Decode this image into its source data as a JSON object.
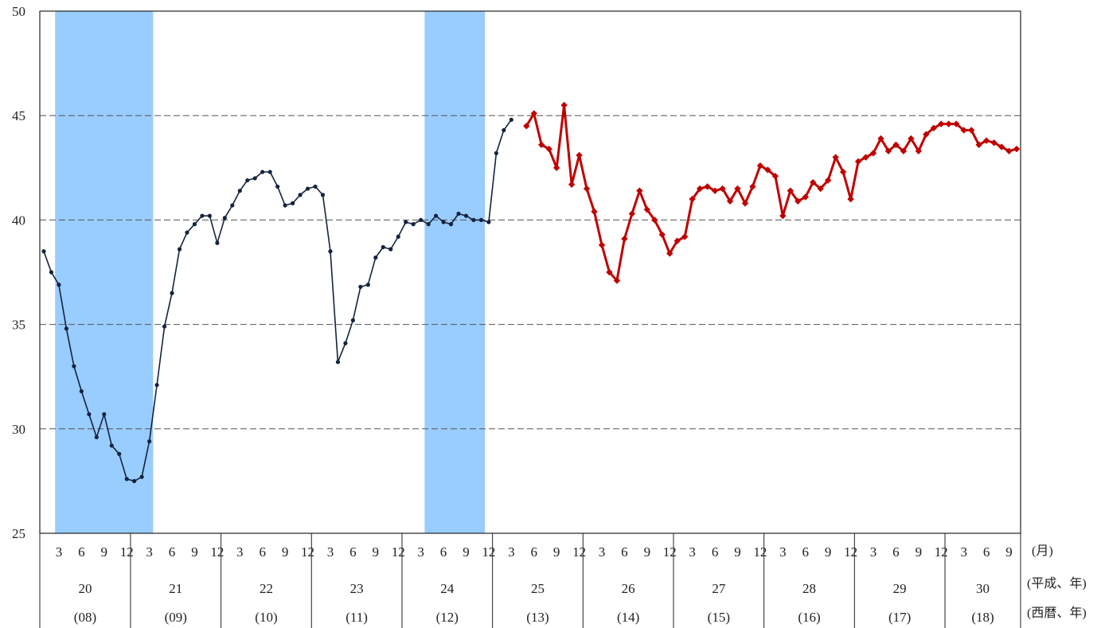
{
  "chart_data": {
    "type": "line",
    "title": "",
    "xlabel": "",
    "ylabel": "",
    "ylim": [
      25,
      50
    ],
    "yticks": [
      25,
      30,
      35,
      40,
      45,
      50
    ],
    "grid": {
      "horizontal": true,
      "style": "dashed"
    },
    "x_index_range": [
      0,
      129
    ],
    "month_labels": [
      {
        "i": 2,
        "label": "3"
      },
      {
        "i": 5,
        "label": "6"
      },
      {
        "i": 8,
        "label": "9"
      },
      {
        "i": 11,
        "label": "12"
      },
      {
        "i": 14,
        "label": "3"
      },
      {
        "i": 17,
        "label": "6"
      },
      {
        "i": 20,
        "label": "9"
      },
      {
        "i": 23,
        "label": "12"
      },
      {
        "i": 26,
        "label": "3"
      },
      {
        "i": 29,
        "label": "6"
      },
      {
        "i": 32,
        "label": "9"
      },
      {
        "i": 35,
        "label": "12"
      },
      {
        "i": 38,
        "label": "3"
      },
      {
        "i": 41,
        "label": "6"
      },
      {
        "i": 44,
        "label": "9"
      },
      {
        "i": 47,
        "label": "12"
      },
      {
        "i": 50,
        "label": "3"
      },
      {
        "i": 53,
        "label": "6"
      },
      {
        "i": 56,
        "label": "9"
      },
      {
        "i": 59,
        "label": "12"
      },
      {
        "i": 62,
        "label": "3"
      },
      {
        "i": 65,
        "label": "6"
      },
      {
        "i": 68,
        "label": "9"
      },
      {
        "i": 71,
        "label": "12"
      },
      {
        "i": 74,
        "label": "3"
      },
      {
        "i": 77,
        "label": "6"
      },
      {
        "i": 80,
        "label": "9"
      },
      {
        "i": 83,
        "label": "12"
      },
      {
        "i": 86,
        "label": "3"
      },
      {
        "i": 89,
        "label": "6"
      },
      {
        "i": 92,
        "label": "9"
      },
      {
        "i": 95,
        "label": "12"
      },
      {
        "i": 98,
        "label": "3"
      },
      {
        "i": 101,
        "label": "6"
      },
      {
        "i": 104,
        "label": "9"
      },
      {
        "i": 107,
        "label": "12"
      },
      {
        "i": 110,
        "label": "3"
      },
      {
        "i": 113,
        "label": "6"
      },
      {
        "i": 116,
        "label": "9"
      },
      {
        "i": 119,
        "label": "12"
      },
      {
        "i": 122,
        "label": "3"
      },
      {
        "i": 125,
        "label": "6"
      },
      {
        "i": 128,
        "label": "9"
      }
    ],
    "month_unit_label": "(月)",
    "years": [
      {
        "heisei": "20",
        "western": "(08)",
        "from": 0,
        "to": 12
      },
      {
        "heisei": "21",
        "western": "(09)",
        "from": 12,
        "to": 24
      },
      {
        "heisei": "22",
        "western": "(10)",
        "from": 24,
        "to": 36
      },
      {
        "heisei": "23",
        "western": "(11)",
        "from": 36,
        "to": 48
      },
      {
        "heisei": "24",
        "western": "(12)",
        "from": 48,
        "to": 60
      },
      {
        "heisei": "25",
        "western": "(13)",
        "from": 60,
        "to": 72
      },
      {
        "heisei": "26",
        "western": "(14)",
        "from": 72,
        "to": 84
      },
      {
        "heisei": "27",
        "western": "(15)",
        "from": 84,
        "to": 96
      },
      {
        "heisei": "28",
        "western": "(16)",
        "from": 96,
        "to": 108
      },
      {
        "heisei": "29",
        "western": "(17)",
        "from": 108,
        "to": 120
      },
      {
        "heisei": "30",
        "western": "(18)",
        "from": 120,
        "to": 129
      }
    ],
    "year_row_label": "(平成、年)",
    "western_row_label": "(西暦、年)",
    "shaded_periods": [
      {
        "from": 1.5,
        "to": 14.5,
        "color": "#99ccff"
      },
      {
        "from": 50.5,
        "to": 58.5,
        "color": "#99ccff"
      }
    ],
    "series": [
      {
        "color": "#14233d",
        "marker": "circle",
        "x_start": 0,
        "values": [
          38.5,
          37.5,
          36.9,
          34.8,
          33.0,
          31.8,
          30.7,
          29.6,
          30.7,
          29.2,
          28.8,
          27.6,
          27.5,
          27.7,
          29.4,
          32.1,
          34.9,
          36.5,
          38.6,
          39.4,
          39.8,
          40.2,
          40.2,
          38.9,
          40.1,
          40.7,
          41.4,
          41.9,
          42.0,
          42.3,
          42.3,
          41.6,
          40.7,
          40.8,
          41.2,
          41.5,
          41.6,
          41.2,
          38.5,
          33.2,
          34.1,
          35.2,
          36.8,
          36.9,
          38.2,
          38.7,
          38.6,
          39.2,
          39.9,
          39.8,
          40.0,
          39.8,
          40.2,
          39.9,
          39.8,
          40.3,
          40.2,
          40.0,
          40.0,
          39.9,
          43.2,
          44.3,
          44.8
        ]
      },
      {
        "color": "#c00000",
        "marker": "diamond",
        "x_start": 64,
        "values": [
          44.5,
          45.1,
          43.6,
          43.4,
          42.5,
          45.5,
          41.7,
          43.1,
          41.5,
          40.4,
          38.8,
          37.5,
          37.1,
          39.1,
          40.3,
          41.4,
          40.5,
          40.0,
          39.3,
          38.4,
          39.0,
          39.2,
          41.0,
          41.5,
          41.6,
          41.4,
          41.5,
          40.9,
          41.5,
          40.8,
          41.6,
          42.6,
          42.4,
          42.1,
          40.2,
          41.4,
          40.9,
          41.1,
          41.8,
          41.5,
          41.9,
          43.0,
          42.3,
          41.0,
          42.8,
          43.0,
          43.2,
          43.9,
          43.3,
          43.6,
          43.3,
          43.9,
          43.3,
          44.1,
          44.4,
          44.6,
          44.6,
          44.6,
          44.3,
          44.3,
          43.6,
          43.8,
          43.7,
          43.5,
          43.3,
          43.4
        ]
      }
    ]
  }
}
